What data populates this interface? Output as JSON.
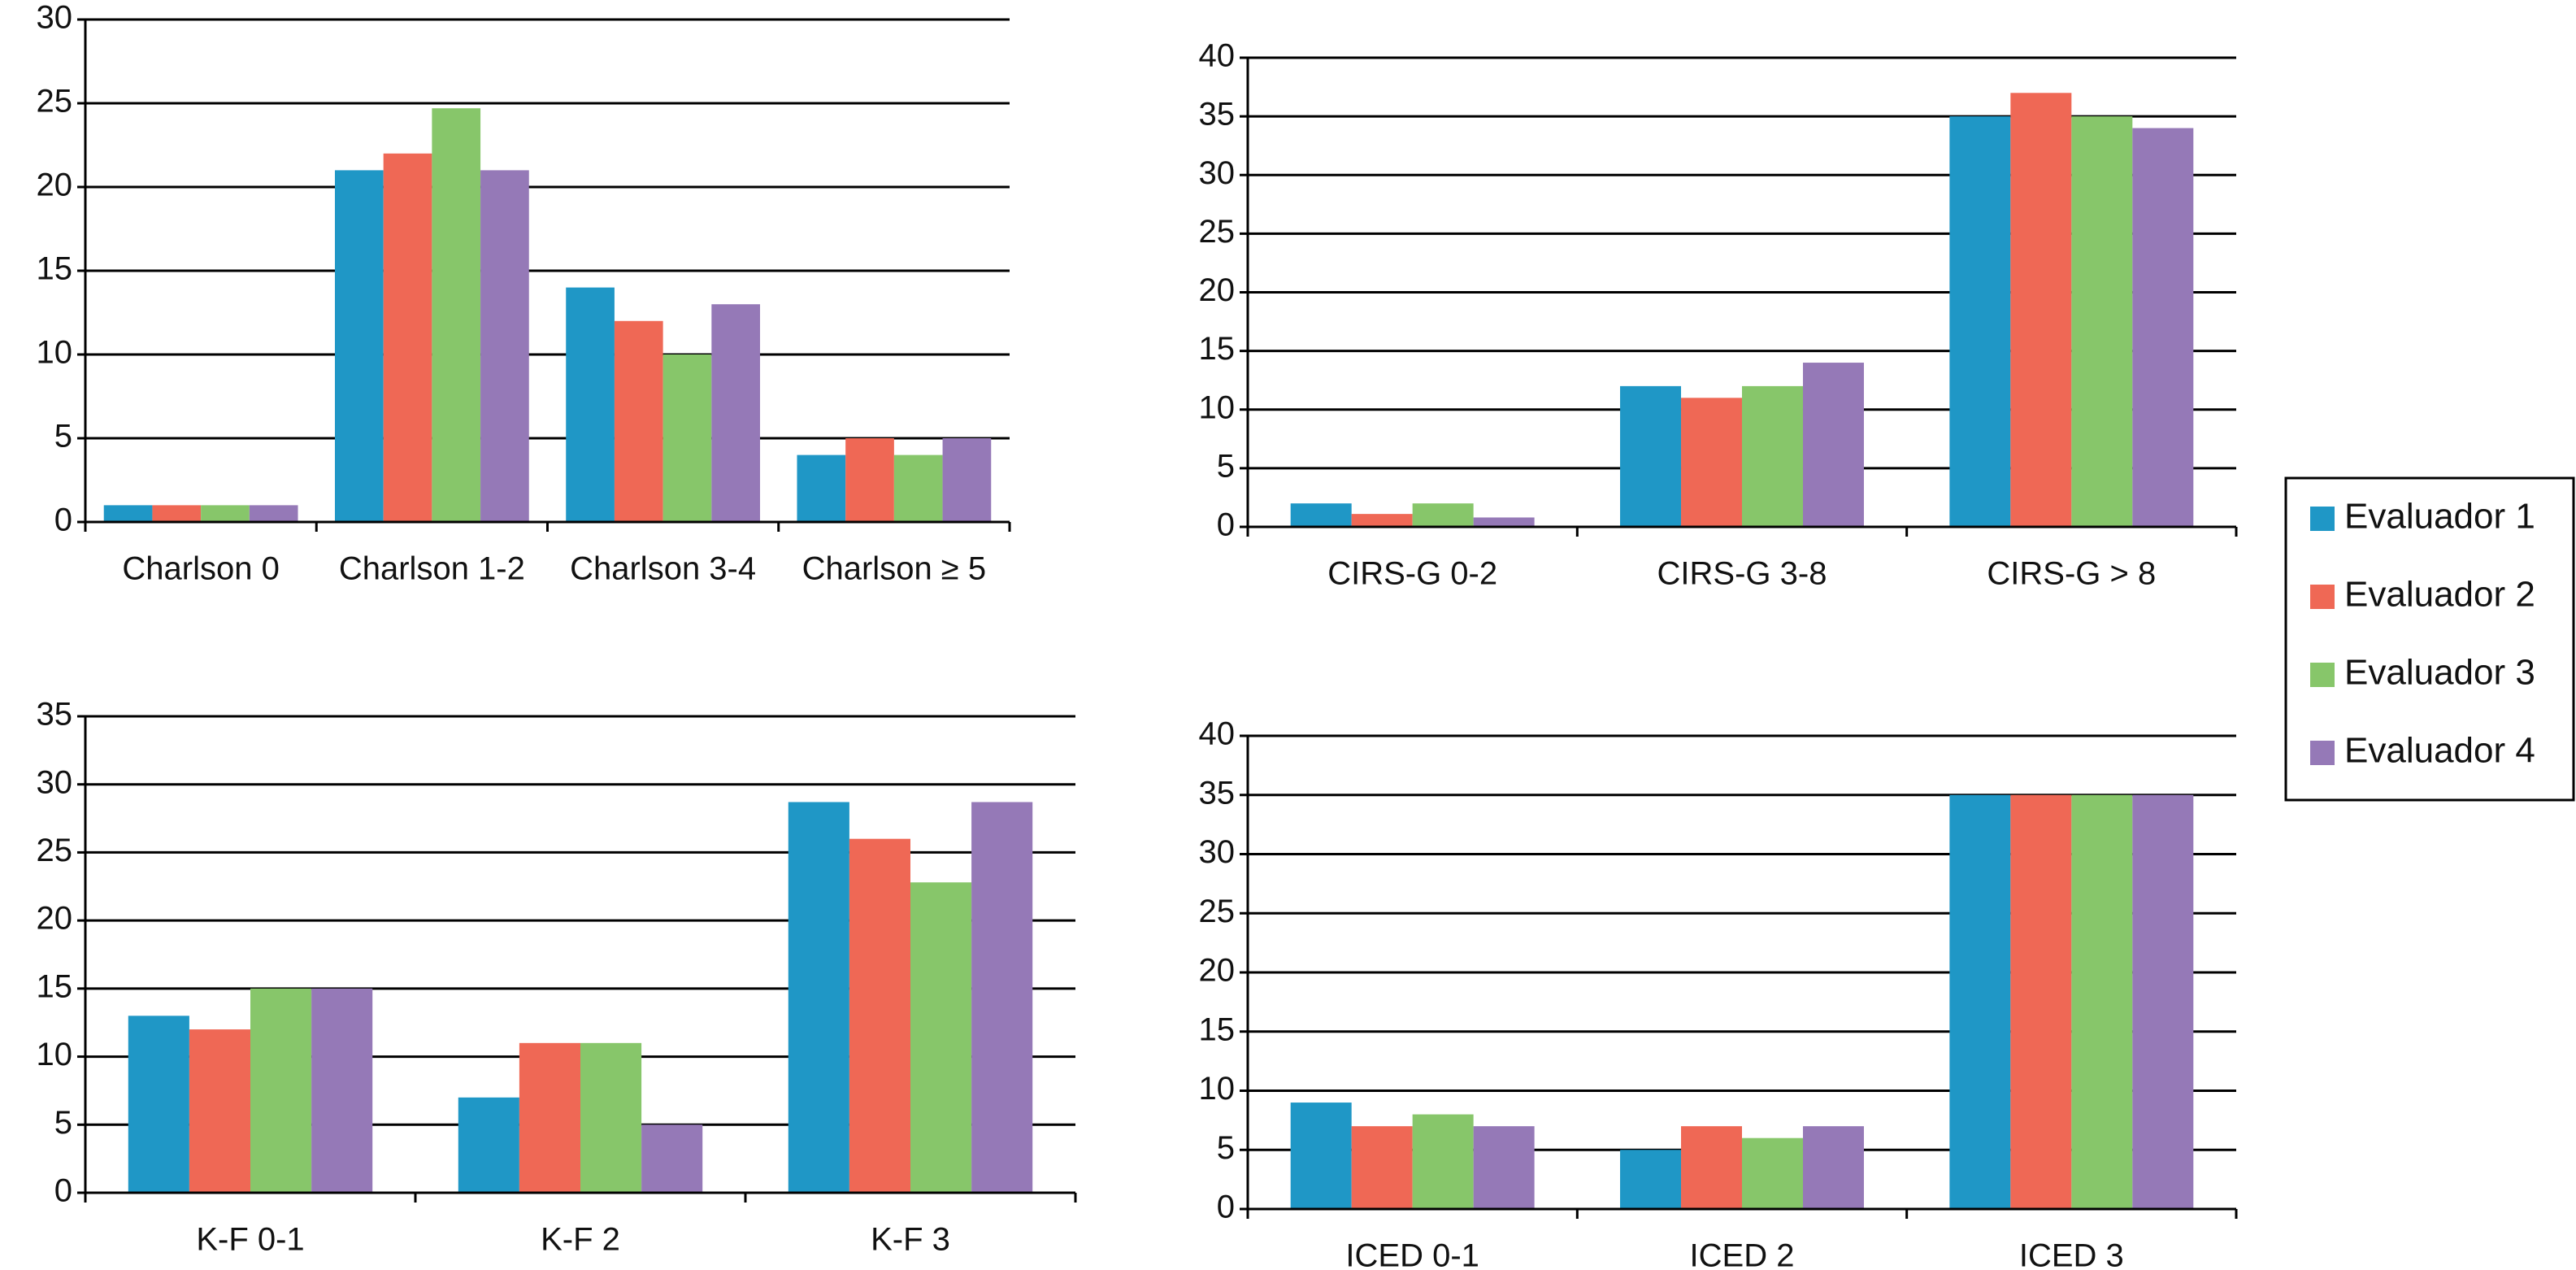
{
  "chart_data": [
    {
      "type": "bar",
      "categories": [
        "Charlson 0",
        "Charlson 1-2",
        "Charlson 3-4",
        "Charlson ≥ 5"
      ],
      "series": [
        {
          "name": "Evaluador 1",
          "color": "#1f97c6",
          "values": [
            1,
            21,
            14,
            4
          ]
        },
        {
          "name": "Evaluador 2",
          "color": "#ef6855",
          "values": [
            1,
            22,
            12,
            5
          ]
        },
        {
          "name": "Evaluador 3",
          "color": "#87c66a",
          "values": [
            1,
            24.7,
            10,
            4
          ]
        },
        {
          "name": "Evaluador 4",
          "color": "#9579b7",
          "values": [
            1,
            21,
            13,
            5
          ]
        }
      ],
      "ylim": [
        0,
        30
      ],
      "yticks": [
        0,
        5,
        10,
        15,
        20,
        25,
        30
      ],
      "grid": true
    },
    {
      "type": "bar",
      "categories": [
        "CIRS-G 0-2",
        "CIRS-G 3-8",
        "CIRS-G > 8"
      ],
      "series": [
        {
          "name": "Evaluador 1",
          "color": "#1f97c6",
          "values": [
            2,
            12,
            35
          ]
        },
        {
          "name": "Evaluador 2",
          "color": "#ef6855",
          "values": [
            1.1,
            11,
            37
          ]
        },
        {
          "name": "Evaluador 3",
          "color": "#87c66a",
          "values": [
            2,
            12,
            35
          ]
        },
        {
          "name": "Evaluador 4",
          "color": "#9579b7",
          "values": [
            0.8,
            14,
            34
          ]
        }
      ],
      "ylim": [
        0,
        40
      ],
      "yticks": [
        0,
        5,
        10,
        15,
        20,
        25,
        30,
        35,
        40
      ],
      "grid": true
    },
    {
      "type": "bar",
      "categories": [
        "K-F 0-1",
        "K-F 2",
        "K-F 3"
      ],
      "series": [
        {
          "name": "Evaluador 1",
          "color": "#1f97c6",
          "values": [
            13,
            7,
            28.7
          ]
        },
        {
          "name": "Evaluador 2",
          "color": "#ef6855",
          "values": [
            12,
            11,
            26
          ]
        },
        {
          "name": "Evaluador 3",
          "color": "#87c66a",
          "values": [
            15,
            11,
            22.8
          ]
        },
        {
          "name": "Evaluador 4",
          "color": "#9579b7",
          "values": [
            15,
            5,
            28.7
          ]
        }
      ],
      "ylim": [
        0,
        35
      ],
      "yticks": [
        0,
        5,
        10,
        15,
        20,
        25,
        30,
        35
      ],
      "grid": true
    },
    {
      "type": "bar",
      "categories": [
        "ICED 0-1",
        "ICED 2",
        "ICED 3"
      ],
      "series": [
        {
          "name": "Evaluador 1",
          "color": "#1f97c6",
          "values": [
            9,
            5,
            35
          ]
        },
        {
          "name": "Evaluador 2",
          "color": "#ef6855",
          "values": [
            7,
            7,
            35
          ]
        },
        {
          "name": "Evaluador 3",
          "color": "#87c66a",
          "values": [
            8,
            6,
            35
          ]
        },
        {
          "name": "Evaluador 4",
          "color": "#9579b7",
          "values": [
            7,
            7,
            35
          ]
        }
      ],
      "ylim": [
        0,
        40
      ],
      "yticks": [
        0,
        5,
        10,
        15,
        20,
        25,
        30,
        35,
        40
      ],
      "grid": true
    }
  ]
}
